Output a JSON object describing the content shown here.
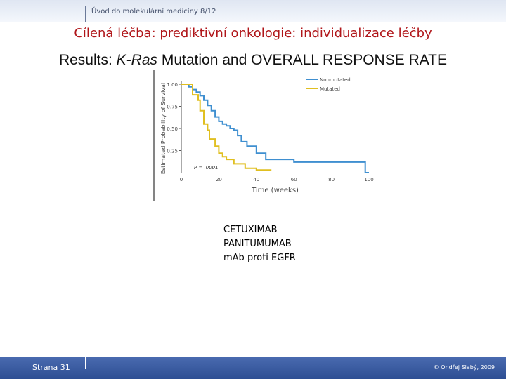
{
  "header": {
    "course_label": "Úvod do molekulární medicíny 8/12"
  },
  "slide": {
    "title": "Cílená léčba: prediktivní onkologie: individualizace léčby",
    "subtitle_prefix": "Results: ",
    "subtitle_italic": "K-Ras",
    "subtitle_suffix": " Mutation and OVERALL RESPONSE RATE"
  },
  "drugs": [
    "CETUXIMAB",
    "PANITUMUMAB",
    "mAb proti EGFR"
  ],
  "footer": {
    "page_number": "Strana 31",
    "copyright": "© Ondřej Slabý, 2009"
  },
  "chart_data": {
    "type": "line",
    "title": "",
    "xlabel": "Time (weeks)",
    "ylabel": "Estimated Probability of Survival",
    "xlim": [
      0,
      100
    ],
    "ylim": [
      0,
      1
    ],
    "x_ticks": [
      "0",
      "20",
      "40",
      "60",
      "80",
      "100"
    ],
    "y_ticks": [
      "0.25",
      "0.50",
      "0.75",
      "1.00"
    ],
    "legend_position": "top-right",
    "annotation": "P = .0001",
    "series": [
      {
        "name": "Nonmutated",
        "color": "#3f8fd0",
        "x": [
          0,
          4,
          4,
          6,
          6,
          8,
          8,
          10,
          10,
          12,
          12,
          14,
          14,
          16,
          16,
          18,
          18,
          20,
          20,
          22,
          22,
          24,
          24,
          26,
          26,
          28,
          28,
          30,
          30,
          32,
          32,
          35,
          35,
          40,
          40,
          45,
          45,
          60,
          60,
          70,
          70,
          79,
          79,
          98,
          98,
          100
        ],
        "y": [
          1.0,
          1.0,
          0.97,
          0.97,
          0.94,
          0.94,
          0.91,
          0.91,
          0.87,
          0.87,
          0.82,
          0.82,
          0.76,
          0.76,
          0.7,
          0.7,
          0.63,
          0.63,
          0.58,
          0.58,
          0.55,
          0.55,
          0.53,
          0.53,
          0.5,
          0.5,
          0.48,
          0.48,
          0.42,
          0.42,
          0.35,
          0.35,
          0.3,
          0.3,
          0.22,
          0.22,
          0.15,
          0.15,
          0.12,
          0.12,
          0.12,
          0.12,
          0.12,
          0.12,
          0.0,
          0.0
        ]
      },
      {
        "name": "Mutated",
        "color": "#e0bf20",
        "x": [
          0,
          6,
          6,
          9,
          9,
          10,
          10,
          12,
          12,
          14,
          14,
          15,
          15,
          18,
          18,
          20,
          20,
          22,
          22,
          24,
          24,
          28,
          28,
          34,
          34,
          40,
          40,
          48
        ],
        "y": [
          1.0,
          1.0,
          0.88,
          0.88,
          0.82,
          0.82,
          0.7,
          0.7,
          0.55,
          0.55,
          0.48,
          0.48,
          0.38,
          0.38,
          0.3,
          0.3,
          0.22,
          0.22,
          0.18,
          0.18,
          0.15,
          0.15,
          0.1,
          0.1,
          0.05,
          0.05,
          0.03,
          0.03
        ]
      }
    ]
  }
}
